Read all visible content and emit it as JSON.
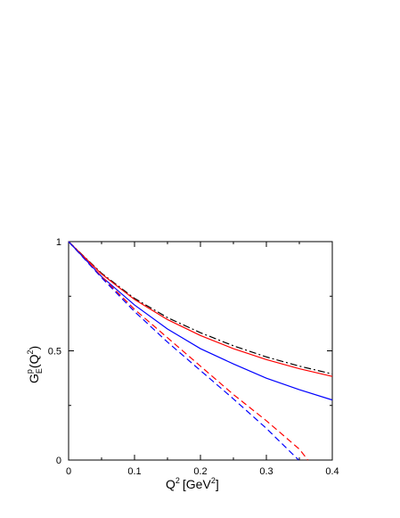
{
  "chart_data": {
    "type": "line",
    "xlabel": {
      "base": "Q",
      "sup": "2",
      "pre_unit": "[GeV",
      "unit_sup": "2",
      "post_unit": "]"
    },
    "ylabel": {
      "base": "G",
      "sub": "E",
      "sup": "p",
      "arg": "(Q",
      "arg_sup": "2",
      "arg_close": ")"
    },
    "xlim": [
      0,
      0.4
    ],
    "ylim": [
      0,
      1
    ],
    "x_ticks": [
      0,
      0.1,
      0.2,
      0.3,
      0.4
    ],
    "x_tick_labels": [
      "0",
      "0.1",
      "0.2",
      "0.3",
      "0.4"
    ],
    "y_ticks": [
      0,
      0.5,
      1
    ],
    "y_tick_labels": [
      "0",
      "0.5",
      "1"
    ],
    "grid": false,
    "series": [
      {
        "color": "#000000",
        "dash": "dashdot",
        "x": [
          0,
          0.05,
          0.1,
          0.15,
          0.2,
          0.25,
          0.3,
          0.35,
          0.4
        ],
        "y": [
          1.0,
          0.855,
          0.74,
          0.652,
          0.583,
          0.523,
          0.472,
          0.43,
          0.394
        ]
      },
      {
        "color": "#ff0000",
        "dash": "solid",
        "x": [
          0,
          0.05,
          0.1,
          0.15,
          0.2,
          0.25,
          0.3,
          0.35,
          0.4
        ],
        "y": [
          1.0,
          0.852,
          0.735,
          0.643,
          0.57,
          0.51,
          0.46,
          0.418,
          0.383
        ]
      },
      {
        "color": "#0000ff",
        "dash": "solid",
        "x": [
          0,
          0.05,
          0.1,
          0.15,
          0.2,
          0.25,
          0.3,
          0.35,
          0.4
        ],
        "y": [
          1.0,
          0.84,
          0.71,
          0.6,
          0.51,
          0.44,
          0.375,
          0.322,
          0.275
        ]
      },
      {
        "color": "#ff0000",
        "dash": "dashed",
        "x": [
          0,
          0.05,
          0.1,
          0.15,
          0.2,
          0.25,
          0.3,
          0.35,
          0.363
        ],
        "y": [
          1.0,
          0.84,
          0.69,
          0.56,
          0.43,
          0.3,
          0.18,
          0.05,
          0.0
        ]
      },
      {
        "color": "#0000ff",
        "dash": "dashed",
        "x": [
          0,
          0.05,
          0.1,
          0.15,
          0.2,
          0.25,
          0.3,
          0.349
        ],
        "y": [
          1.0,
          0.835,
          0.68,
          0.54,
          0.41,
          0.28,
          0.145,
          0.0
        ]
      }
    ]
  }
}
